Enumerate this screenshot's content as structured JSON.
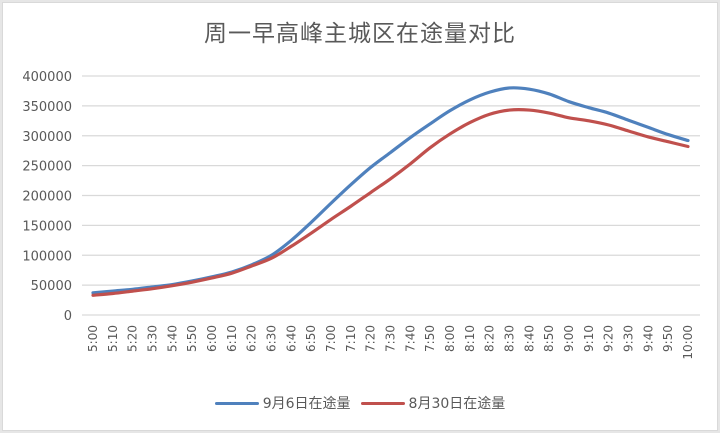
{
  "chart_data": {
    "type": "line",
    "title": "周一早高峰主城区在途量对比",
    "xlabel": "",
    "ylabel": "",
    "ylim": [
      0,
      400000
    ],
    "yticks": [
      0,
      50000,
      100000,
      150000,
      200000,
      250000,
      300000,
      350000,
      400000
    ],
    "grid": true,
    "legend_position": "bottom",
    "categories": [
      "5:00",
      "5:10",
      "5:20",
      "5:30",
      "5:40",
      "5:50",
      "6:00",
      "6:10",
      "6:20",
      "6:30",
      "6:40",
      "6:50",
      "7:00",
      "7:10",
      "7:20",
      "7:30",
      "7:40",
      "7:50",
      "8:00",
      "8:10",
      "8:20",
      "8:30",
      "8:40",
      "8:50",
      "9:00",
      "9:10",
      "9:20",
      "9:30",
      "9:40",
      "9:50",
      "10:00"
    ],
    "series": [
      {
        "name": "9月6日在途量",
        "color": "#4f81bd",
        "values": [
          37000,
          40000,
          43000,
          47000,
          51000,
          57000,
          64000,
          72000,
          84000,
          100000,
          125000,
          155000,
          187000,
          218000,
          247000,
          272000,
          297000,
          320000,
          342000,
          360000,
          373000,
          380000,
          378000,
          370000,
          357000,
          347000,
          338000,
          326000,
          314000,
          302000,
          292000
        ]
      },
      {
        "name": "8月30日在途量",
        "color": "#c0504d",
        "values": [
          33000,
          36000,
          40000,
          44000,
          49000,
          55000,
          62000,
          70000,
          82000,
          95000,
          115000,
          137000,
          160000,
          182000,
          205000,
          228000,
          253000,
          280000,
          303000,
          322000,
          336000,
          343000,
          343000,
          338000,
          330000,
          325000,
          318000,
          308000,
          298000,
          290000,
          282000
        ]
      }
    ]
  },
  "legend": {
    "items": [
      {
        "label": "9月6日在途量",
        "color": "#4f81bd"
      },
      {
        "label": "8月30日在途量",
        "color": "#c0504d"
      }
    ]
  }
}
